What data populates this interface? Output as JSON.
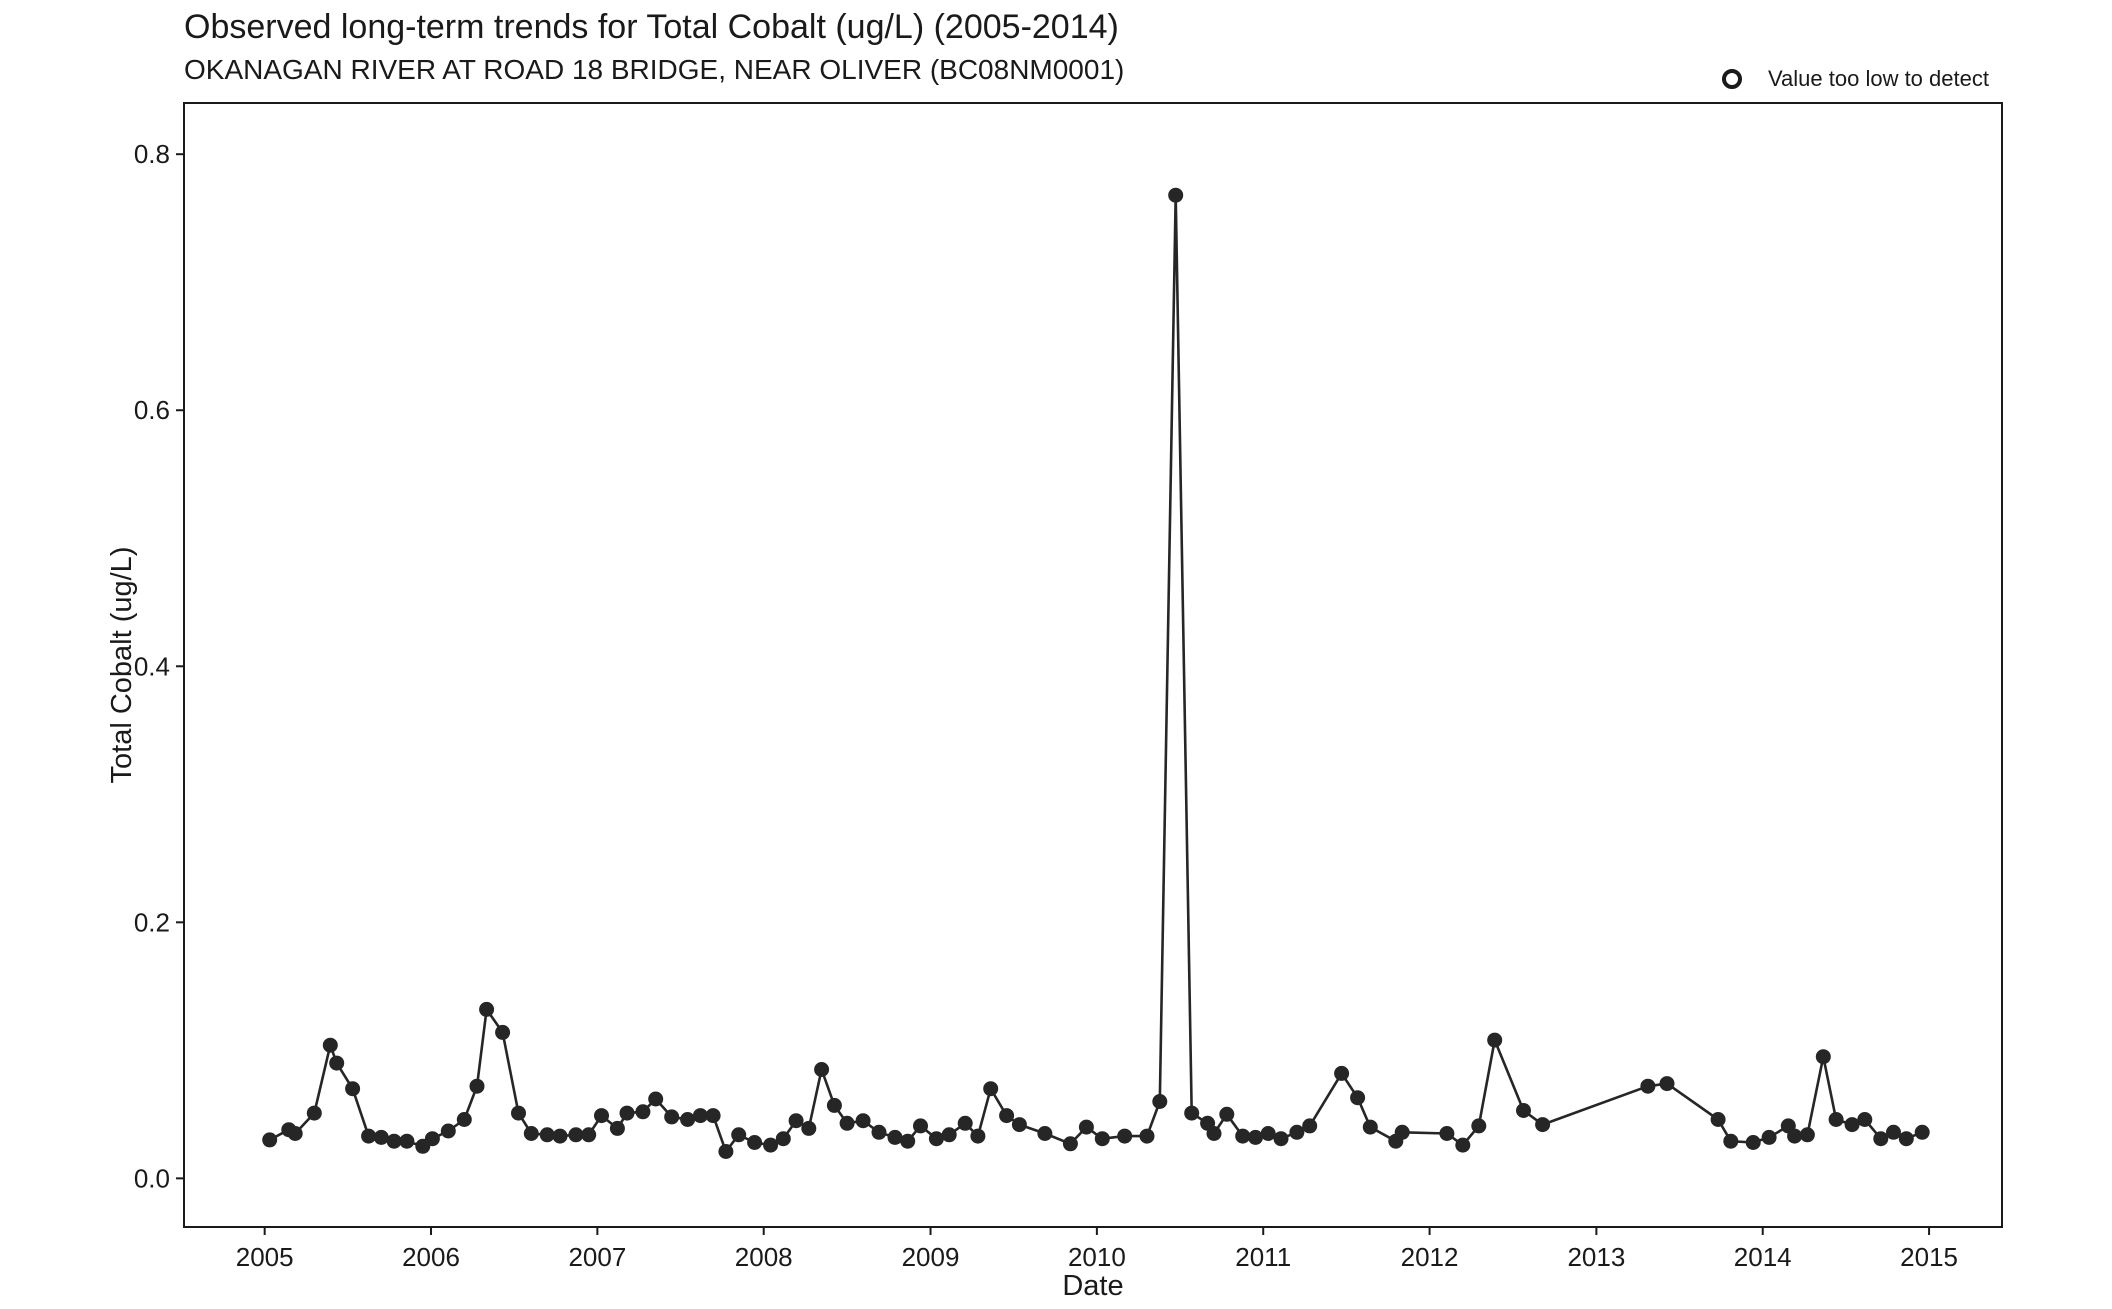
{
  "chart_data": {
    "type": "line",
    "title": "Observed long-term trends for Total Cobalt (ug/L) (2005-2014)",
    "subtitle": "OKANAGAN RIVER AT ROAD 18 BRIDGE, NEAR OLIVER (BC08NM0001)",
    "xlabel": "Date",
    "ylabel": "Total Cobalt (ug/L)",
    "x_tick_labels": [
      "2005",
      "2006",
      "2007",
      "2008",
      "2009",
      "2010",
      "2011",
      "2012",
      "2013",
      "2014",
      "2015"
    ],
    "y_tick_labels": [
      "0.0",
      "0.2",
      "0.4",
      "0.6",
      "0.8"
    ],
    "xlim": [
      "2004-07-08",
      "2015-06-10"
    ],
    "ylim": [
      -0.038,
      0.84
    ],
    "legend": {
      "label": "Value too low to detect",
      "placement": "top-right"
    },
    "grid": false,
    "colors": {
      "series": "#262626",
      "axis": "#1a1a1a"
    },
    "series": [
      {
        "x": [
          "2005-01-12",
          "2005-02-23",
          "2005-03-09",
          "2005-04-20",
          "2005-05-25",
          "2005-06-08",
          "2005-07-13",
          "2005-08-17",
          "2005-09-14",
          "2005-10-12",
          "2005-11-09",
          "2005-12-14",
          "2006-01-04",
          "2006-02-08",
          "2006-03-15",
          "2006-04-12",
          "2006-05-03",
          "2006-06-07",
          "2006-07-12",
          "2006-08-09",
          "2006-09-13",
          "2006-10-11",
          "2006-11-15",
          "2006-12-13",
          "2007-01-10",
          "2007-02-14",
          "2007-03-07",
          "2007-04-11",
          "2007-05-09",
          "2007-06-13",
          "2007-07-18",
          "2007-08-15",
          "2007-09-12",
          "2007-10-10",
          "2007-11-07",
          "2007-12-12",
          "2008-01-16",
          "2008-02-13",
          "2008-03-12",
          "2008-04-09",
          "2008-05-07",
          "2008-06-04",
          "2008-07-02",
          "2008-08-06",
          "2008-09-10",
          "2008-10-15",
          "2008-11-12",
          "2008-12-10",
          "2009-01-14",
          "2009-02-11",
          "2009-03-18",
          "2009-04-15",
          "2009-05-13",
          "2009-06-17",
          "2009-07-15",
          "2009-09-09",
          "2009-11-04",
          "2009-12-09",
          "2010-01-13",
          "2010-03-03",
          "2010-04-21",
          "2010-05-19",
          "2010-06-23",
          "2010-07-28",
          "2010-09-01",
          "2010-09-15",
          "2010-10-13",
          "2010-11-17",
          "2010-12-15",
          "2011-01-12",
          "2011-02-09",
          "2011-03-16",
          "2011-04-13",
          "2011-06-22",
          "2011-07-27",
          "2011-08-24",
          "2011-10-19",
          "2011-11-02",
          "2012-02-08",
          "2012-03-14",
          "2012-04-18",
          "2012-05-23",
          "2012-07-25",
          "2012-09-05",
          "2013-04-24",
          "2013-06-05",
          "2013-09-25",
          "2013-10-23",
          "2013-12-11",
          "2014-01-15",
          "2014-02-26",
          "2014-03-12",
          "2014-04-09",
          "2014-05-14",
          "2014-06-11",
          "2014-07-16",
          "2014-08-13",
          "2014-09-17",
          "2014-10-15",
          "2014-11-12",
          "2014-12-17"
        ],
        "y": [
          0.03,
          0.038,
          0.035,
          0.051,
          0.104,
          0.09,
          0.07,
          0.033,
          0.032,
          0.029,
          0.029,
          0.025,
          0.031,
          0.037,
          0.046,
          0.072,
          0.132,
          0.114,
          0.051,
          0.035,
          0.034,
          0.033,
          0.034,
          0.034,
          0.049,
          0.039,
          0.051,
          0.052,
          0.062,
          0.048,
          0.046,
          0.049,
          0.049,
          0.021,
          0.034,
          0.028,
          0.026,
          0.031,
          0.045,
          0.039,
          0.085,
          0.057,
          0.043,
          0.045,
          0.036,
          0.032,
          0.029,
          0.041,
          0.031,
          0.034,
          0.043,
          0.033,
          0.07,
          0.049,
          0.042,
          0.035,
          0.027,
          0.04,
          0.031,
          0.033,
          0.033,
          0.06,
          0.768,
          0.051,
          0.043,
          0.035,
          0.05,
          0.033,
          0.032,
          0.035,
          0.031,
          0.036,
          0.041,
          0.082,
          0.063,
          0.04,
          0.029,
          0.036,
          0.035,
          0.026,
          0.041,
          0.108,
          0.053,
          0.042,
          0.072,
          0.074,
          0.046,
          0.029,
          0.028,
          0.032,
          0.041,
          0.033,
          0.034,
          0.095,
          0.046,
          0.042,
          0.046,
          0.031,
          0.036,
          0.031,
          0.036
        ]
      }
    ]
  }
}
